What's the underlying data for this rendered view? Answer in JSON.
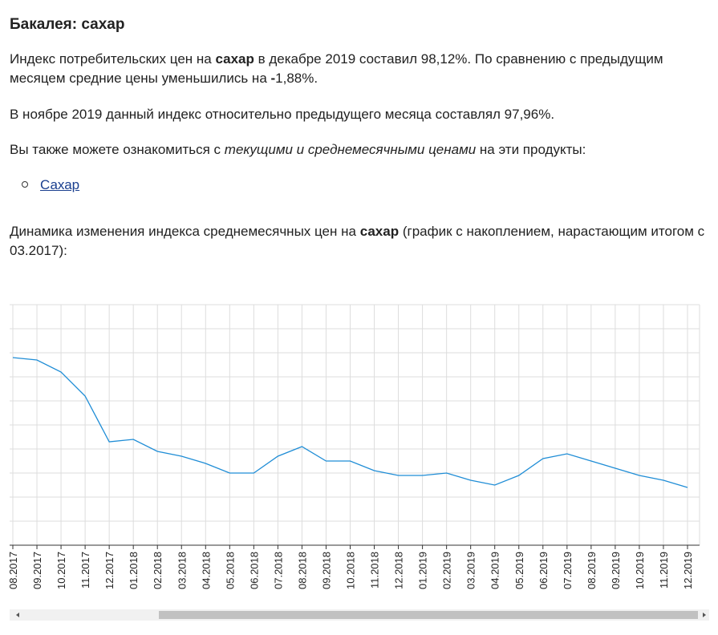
{
  "header": {
    "title": "Бакалея: сахар"
  },
  "text": {
    "p1": [
      "Индекс потребительских цен на ",
      "сахар",
      " в декабре 2019 составил 98,12%. По сравнению с предыдущим месяцем средние цены уменьшились на ",
      "-",
      "1,88%."
    ],
    "p2": "В ноябре 2019 данный индекс относительно предыдущего месяца составлял 97,96%.",
    "p3": [
      "Вы также можете ознакомиться с ",
      "текущими и среднемесячными ценами",
      " на эти продукты:"
    ],
    "links": [
      "Сахар"
    ],
    "p4": [
      "Динамика изменения индекса среднемесячных цен на ",
      "сахар",
      " (график с накоплением, нарастающим итогом с 03.2017):"
    ]
  },
  "chart_data": {
    "type": "line",
    "categories": [
      "08.2017",
      "09.2017",
      "10.2017",
      "11.2017",
      "12.2017",
      "01.2018",
      "02.2018",
      "03.2018",
      "04.2018",
      "05.2018",
      "06.2018",
      "07.2018",
      "08.2018",
      "09.2018",
      "10.2018",
      "11.2018",
      "12.2018",
      "01.2019",
      "02.2019",
      "03.2019",
      "04.2019",
      "05.2019",
      "06.2019",
      "07.2019",
      "08.2019",
      "09.2019",
      "10.2019",
      "11.2019",
      "12.2019"
    ],
    "values": [
      7.8,
      7.7,
      7.2,
      6.2,
      4.3,
      4.4,
      3.9,
      3.7,
      3.4,
      3.0,
      3.0,
      3.7,
      4.1,
      3.5,
      3.5,
      3.1,
      2.9,
      2.9,
      3.0,
      2.7,
      2.5,
      2.9,
      3.6,
      3.8,
      3.5,
      3.2,
      2.9,
      2.7,
      2.4
    ],
    "color": "#1f8dd6",
    "ylim": [
      0,
      10
    ],
    "grid": true
  }
}
